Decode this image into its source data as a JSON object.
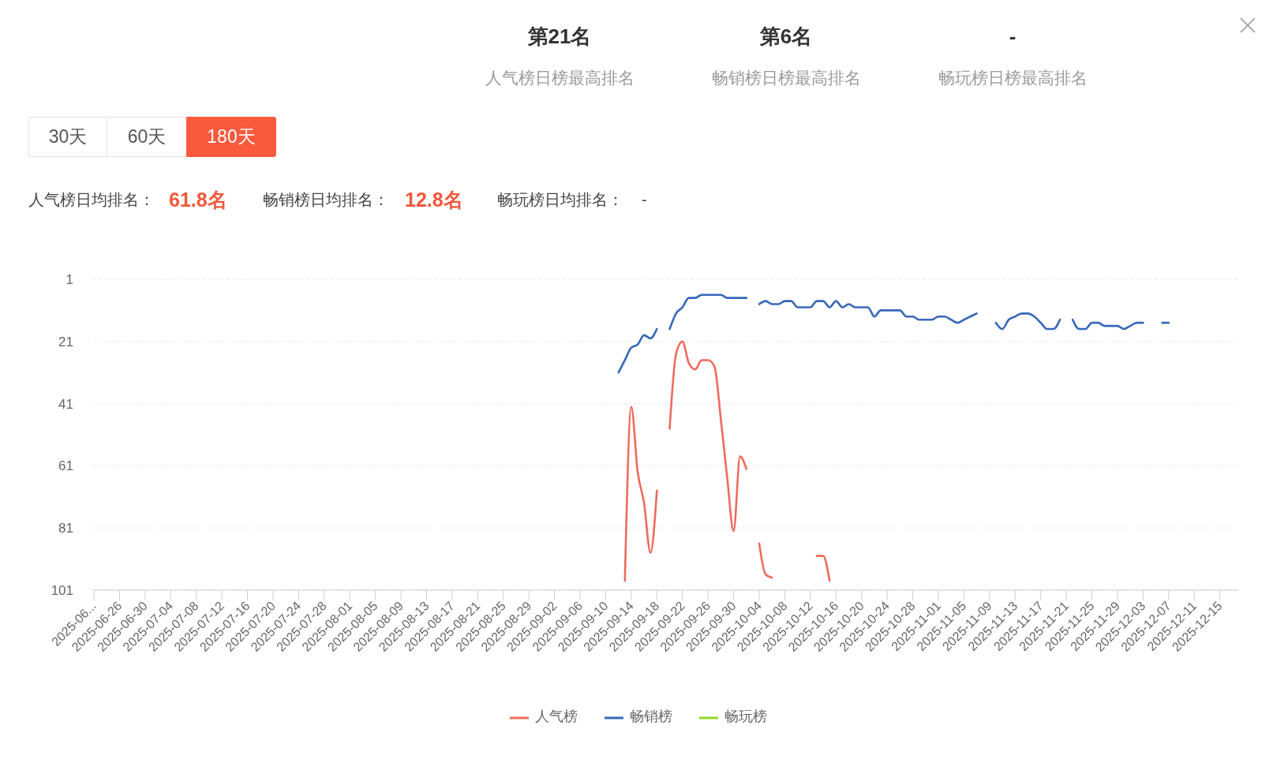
{
  "chart_data": {
    "type": "line",
    "annotations": [
      "第21名",
      "人气榜日榜最高排名",
      "第6名",
      "畅销榜日榜最高排名",
      "-",
      "畅玩榜日榜最高排名",
      "30天",
      "60天",
      "180天",
      "人气榜日均排名：",
      "61.8名",
      "畅销榜日均排名：",
      "12.8名",
      "畅玩榜日均排名：",
      "-"
    ],
    "x": [
      "2025-09-12",
      "2025-09-13",
      "2025-09-14",
      "2025-09-15",
      "2025-09-16",
      "2025-09-17",
      "2025-09-18",
      "2025-09-19",
      "2025-09-20",
      "2025-09-21",
      "2025-09-22",
      "2025-09-23",
      "2025-09-24",
      "2025-09-25",
      "2025-09-26",
      "2025-09-27",
      "2025-09-28",
      "2025-09-29",
      "2025-09-30",
      "2025-10-01",
      "2025-10-02",
      "2025-10-03",
      "2025-10-04",
      "2025-10-05",
      "2025-10-06",
      "2025-10-07",
      "2025-10-08",
      "2025-10-09",
      "2025-10-10",
      "2025-10-11",
      "2025-10-12",
      "2025-10-13",
      "2025-10-14",
      "2025-10-15",
      "2025-10-16",
      "2025-10-17",
      "2025-10-18",
      "2025-10-19",
      "2025-10-20",
      "2025-10-21",
      "2025-10-22",
      "2025-10-23",
      "2025-10-24",
      "2025-10-25",
      "2025-10-26",
      "2025-10-27",
      "2025-10-28",
      "2025-10-29",
      "2025-10-30",
      "2025-10-31",
      "2025-11-01",
      "2025-11-02",
      "2025-11-03",
      "2025-11-04",
      "2025-11-05",
      "2025-11-06",
      "2025-11-07",
      "2025-11-08",
      "2025-11-09",
      "2025-11-10",
      "2025-11-11",
      "2025-11-12",
      "2025-11-13",
      "2025-11-14",
      "2025-11-15",
      "2025-11-16",
      "2025-11-17",
      "2025-11-18",
      "2025-11-19",
      "2025-11-20",
      "2025-11-21",
      "2025-11-22",
      "2025-11-23",
      "2025-11-24",
      "2025-11-25",
      "2025-11-26",
      "2025-11-27",
      "2025-11-28",
      "2025-11-29",
      "2025-11-30",
      "2025-12-01",
      "2025-12-02",
      "2025-12-03",
      "2025-12-04",
      "2025-12-05",
      "2025-12-06",
      "2025-12-07"
    ],
    "series": [
      {
        "name": "人气榜",
        "color": "#ee6b5e",
        "values": [
          null,
          98,
          42,
          63,
          73,
          89,
          69,
          null,
          49,
          25,
          21,
          28,
          30,
          27,
          27,
          29,
          46,
          65,
          82,
          58,
          62,
          null,
          86,
          96,
          97,
          null,
          null,
          null,
          null,
          null,
          null,
          90,
          90,
          98,
          null,
          null,
          null,
          null,
          null,
          null,
          null,
          null,
          null,
          null,
          null,
          null,
          null,
          null,
          null,
          null,
          null,
          null,
          null,
          null,
          null,
          null,
          null,
          null,
          null,
          null,
          null,
          null,
          null,
          null,
          null,
          null,
          null,
          null,
          null,
          null,
          null,
          null,
          null,
          null,
          null,
          null,
          null,
          null,
          null,
          null,
          null,
          null,
          null,
          null,
          null,
          null,
          null
        ]
      },
      {
        "name": "畅销榜",
        "color": "#3867b8",
        "values": [
          31,
          27,
          23,
          22,
          19,
          20,
          17,
          null,
          17,
          12,
          10,
          7,
          7,
          6,
          6,
          6,
          6,
          7,
          7,
          7,
          7,
          null,
          9,
          8,
          9,
          9,
          8,
          8,
          10,
          10,
          10,
          8,
          8,
          10,
          8,
          10,
          9,
          10,
          10,
          10,
          13,
          11,
          11,
          11,
          11,
          13,
          13,
          14,
          14,
          14,
          13,
          13,
          14,
          15,
          14,
          13,
          12,
          null,
          null,
          15,
          17,
          14,
          13,
          12,
          12,
          13,
          15,
          17,
          17,
          14,
          null,
          14,
          17,
          17,
          15,
          15,
          16,
          16,
          16,
          17,
          16,
          15,
          15,
          null,
          null,
          15,
          15
        ]
      },
      {
        "name": "畅玩榜",
        "color": "#91d82b",
        "values": [
          null,
          null,
          null,
          null,
          null,
          null,
          null,
          null,
          null,
          null,
          null,
          null,
          null,
          null,
          null,
          null,
          null,
          null,
          null,
          null,
          null,
          null,
          null,
          null,
          null,
          null,
          null,
          null,
          null,
          null,
          null,
          null,
          null,
          null,
          null,
          null,
          null,
          null,
          null,
          null,
          null,
          null,
          null,
          null,
          null,
          null,
          null,
          null,
          null,
          null,
          null,
          null,
          null,
          null,
          null,
          null,
          null,
          null,
          null,
          null,
          null,
          null,
          null,
          null,
          null,
          null,
          null,
          null,
          null,
          null,
          null,
          null,
          null,
          null,
          null,
          null,
          null,
          null,
          null,
          null,
          null,
          null,
          null,
          null,
          null,
          null,
          null
        ]
      }
    ],
    "xlim": [
      "2025-06-22",
      "2025-12-18"
    ],
    "xticks": [
      {
        "value": "2025-06-22",
        "label": "2025-06..."
      },
      "2025-06-26",
      "2025-06-30",
      "2025-07-04",
      "2025-07-08",
      "2025-07-12",
      "2025-07-16",
      "2025-07-20",
      "2025-07-24",
      "2025-07-28",
      "2025-08-01",
      "2025-08-05",
      "2025-08-09",
      "2025-08-13",
      "2025-08-17",
      "2025-08-21",
      "2025-08-25",
      "2025-08-29",
      "2025-09-02",
      "2025-09-06",
      "2025-09-10",
      "2025-09-14",
      "2025-09-18",
      "2025-09-22",
      "2025-09-26",
      "2025-09-30",
      "2025-10-04",
      "2025-10-08",
      "2025-10-12",
      "2025-10-16",
      "2025-10-20",
      "2025-10-24",
      "2025-10-28",
      "2025-11-01",
      "2025-11-05",
      "2025-11-09",
      "2025-11-13",
      "2025-11-17",
      "2025-11-21",
      "2025-11-25",
      "2025-11-29",
      "2025-12-03",
      "2025-12-07",
      "2025-12-11",
      "2025-12-15"
    ],
    "ylim": [
      101,
      1
    ],
    "yticks": [
      1,
      21,
      41,
      61,
      81,
      101
    ],
    "grid": "y",
    "legend": "bottom",
    "line_style": "solid"
  }
}
